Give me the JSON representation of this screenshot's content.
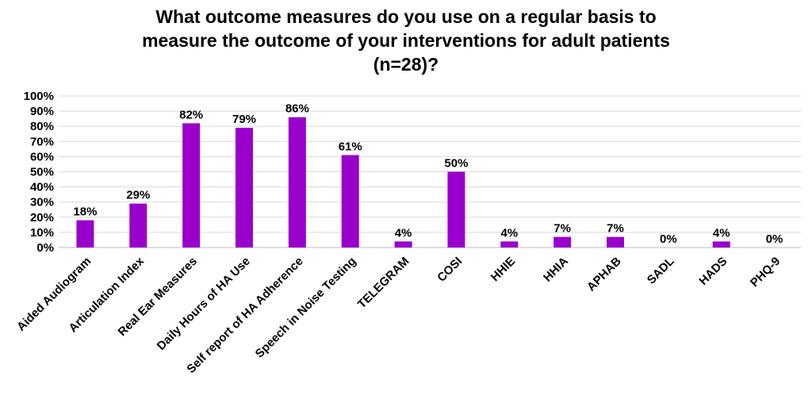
{
  "chart_data": {
    "type": "bar",
    "title_lines": [
      "What outcome measures do you use on a regular basis to",
      "measure the outcome of your interventions for adult patients",
      "(n=28)?"
    ],
    "categories": [
      "Aided Audiogram",
      "Articulation Index",
      "Real Ear Measures",
      "Daily Hours of HA Use",
      "Self report of HA Adherence",
      "Speech in Noise Testing",
      "TELEGRAM",
      "COSI",
      "HHIE",
      "HHIA",
      "APHAB",
      "SADL",
      "HADS",
      "PHQ-9"
    ],
    "values": [
      18,
      29,
      82,
      79,
      86,
      61,
      4,
      50,
      4,
      7,
      7,
      0,
      4,
      0
    ],
    "data_labels": [
      "18%",
      "29%",
      "82%",
      "79%",
      "86%",
      "61%",
      "4%",
      "50%",
      "4%",
      "7%",
      "7%",
      "0%",
      "4%",
      "0%"
    ],
    "y_ticks": [
      "0%",
      "10%",
      "20%",
      "30%",
      "40%",
      "50%",
      "60%",
      "70%",
      "80%",
      "90%",
      "100%"
    ],
    "ylim": [
      0,
      100
    ],
    "grid": true,
    "bar_color": "#9900CC",
    "grid_color": "#d9d9d9"
  }
}
